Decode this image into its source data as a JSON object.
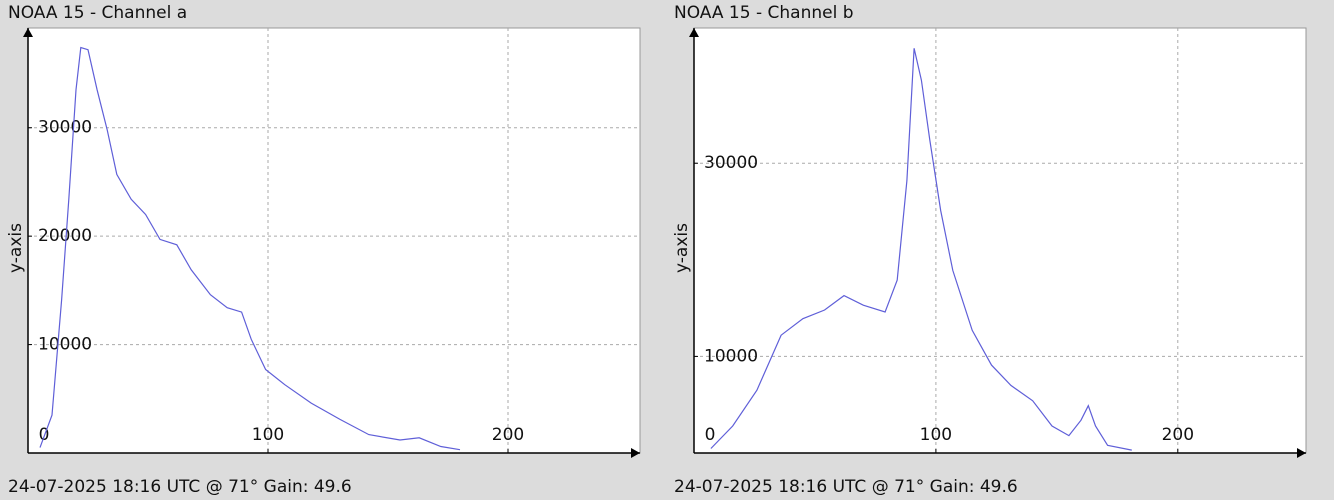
{
  "chart_data": [
    {
      "type": "line",
      "title": "NOAA 15 - Channel a",
      "caption": "24-07-2025 18:16 UTC @ 71° Gain: 49.6",
      "ylabel": "y-axis",
      "xlim": [
        0,
        255
      ],
      "xticks": [
        0,
        100,
        200
      ],
      "ylim": [
        0,
        39200
      ],
      "yticks": [
        10000,
        20000,
        30000
      ],
      "grid": true,
      "series": [
        {
          "color": "#5f5fd8",
          "x": [
            5,
            10,
            14,
            17,
            20,
            22,
            25,
            28.8,
            33,
            37,
            43,
            49,
            55,
            62,
            68,
            76,
            83,
            89,
            93,
            99,
            107,
            118,
            130,
            142,
            155,
            163,
            172,
            180
          ],
          "values": [
            500,
            3500,
            14100,
            23400,
            33500,
            37400,
            37200,
            33500,
            29800,
            25700,
            23400,
            22000,
            19700,
            19200,
            16900,
            14600,
            13400,
            13000,
            10500,
            7700,
            6300,
            4600,
            3100,
            1700,
            1200,
            1400,
            600,
            300
          ]
        }
      ]
    },
    {
      "type": "line",
      "title": "NOAA 15 - Channel b",
      "caption": "24-07-2025 18:16 UTC @ 71° Gain: 49.6",
      "ylabel": "y-axis",
      "xlim": [
        0,
        253
      ],
      "xticks": [
        0,
        100,
        200
      ],
      "ylim": [
        0,
        44000
      ],
      "yticks": [
        10000,
        30000
      ],
      "grid": true,
      "series": [
        {
          "color": "#5f5fd8",
          "x": [
            7,
            16,
            26,
            36,
            45,
            54,
            62,
            70,
            79,
            84,
            88,
            91,
            94,
            97.5,
            102,
            107,
            115,
            123,
            131,
            140,
            148,
            155,
            160,
            163,
            166,
            171,
            181
          ],
          "values": [
            470,
            2800,
            6500,
            12200,
            13900,
            14800,
            16300,
            15300,
            14600,
            17900,
            28200,
            41900,
            38600,
            32400,
            25100,
            18900,
            12700,
            9100,
            7000,
            5400,
            2800,
            1800,
            3400,
            4900,
            2800,
            800,
            300
          ]
        }
      ]
    }
  ]
}
